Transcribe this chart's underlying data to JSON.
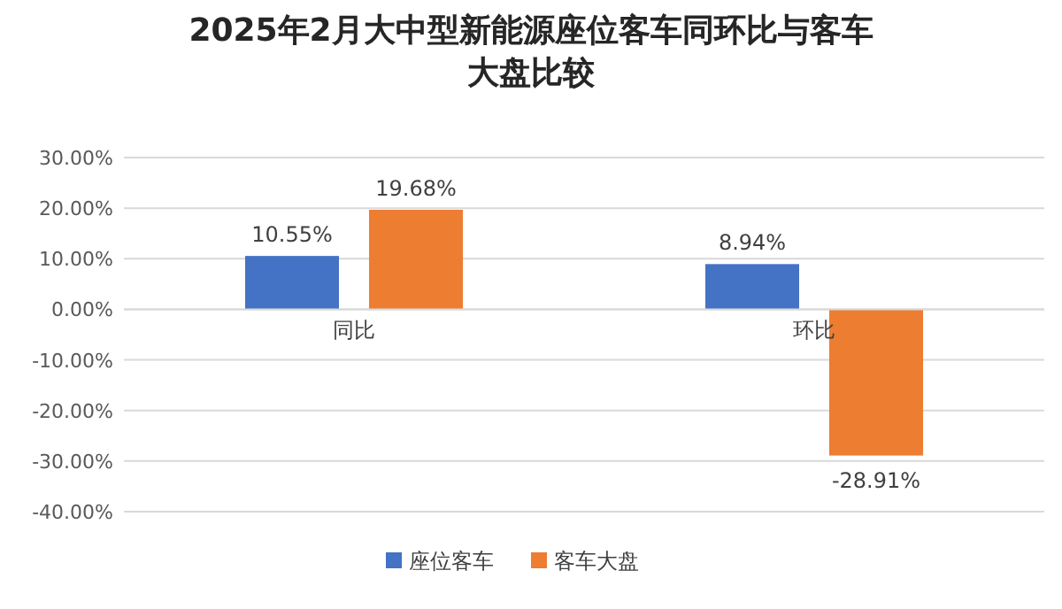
{
  "chart_data": {
    "type": "bar",
    "title": "2025年2月大中型新能源座位客车同环比与客车大盘比较",
    "categories": [
      "同比",
      "环比"
    ],
    "series": [
      {
        "name": "座位客车",
        "color": "#4472c4",
        "values": [
          10.55,
          8.94
        ],
        "value_labels": [
          "10.55%",
          "8.94%"
        ]
      },
      {
        "name": "客车大盘",
        "color": "#ed7d31",
        "values": [
          19.68,
          -28.91
        ],
        "value_labels": [
          "19.68%",
          "-28.91%"
        ]
      }
    ],
    "ylim": [
      -40,
      30
    ],
    "yticks": [
      {
        "value": -40,
        "label": "-40.00%"
      },
      {
        "value": -30,
        "label": "-30.00%"
      },
      {
        "value": -20,
        "label": "-20.00%"
      },
      {
        "value": -10,
        "label": "-10.00%"
      },
      {
        "value": 0,
        "label": "0.00%"
      },
      {
        "value": 10,
        "label": "10.00%"
      },
      {
        "value": 20,
        "label": "20.00%"
      },
      {
        "value": 30,
        "label": "30.00%"
      }
    ],
    "grid": "y",
    "legend": "bottom"
  }
}
